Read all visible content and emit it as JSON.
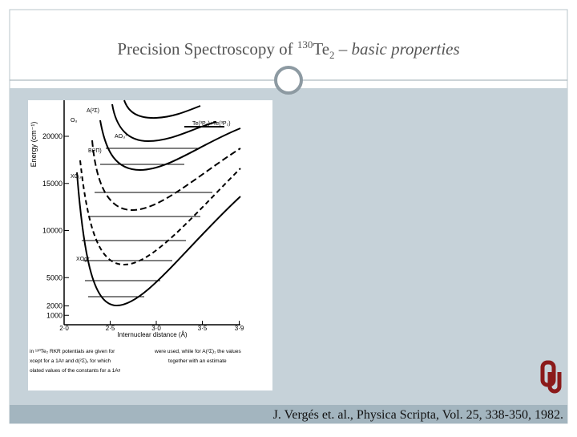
{
  "slide": {
    "title": {
      "text": "Precision Spectroscopy of ",
      "superscript": "130",
      "element": "Te",
      "subscript": "2",
      "dash": " – ",
      "emphasis": "basic properties"
    },
    "citation": "J. Vergés et. al., Physica Scripta, Vol. 25, 338-350, 1982."
  },
  "figure": {
    "y_axis_label": "Energy (cm⁻¹)",
    "yticks": [
      1000,
      2000,
      5000,
      10000,
      15000,
      20000
    ],
    "xticks": [
      {
        "value": 2.0,
        "label": "2·0"
      },
      {
        "value": 2.5,
        "label": "2·5"
      },
      {
        "value": 3.0,
        "label": "3·0"
      },
      {
        "value": 3.5,
        "label": "3·5"
      },
      {
        "value": 3.9,
        "label": "3·9"
      }
    ],
    "x_axis_label": "Internuclear distance (Å)",
    "state_labels": [
      "A(²Σ)",
      "Oᵤ",
      "AOᵤ⁺",
      "B(²Π)",
      "XOᵤ",
      "XOg⁺",
      "Te(³P₂)+Te(³P₂)"
    ],
    "caption_lines": [
      "in ¹³⁰Te₂ RKR potentials are given for",
      "xcept for a 1Aᵍ and d(²Σ)₁ for which",
      "olated values of the constants for a 1Aᵍ",
      "were used, while for A(²Σ)₁ the values",
      "together with an estimate"
    ]
  }
}
